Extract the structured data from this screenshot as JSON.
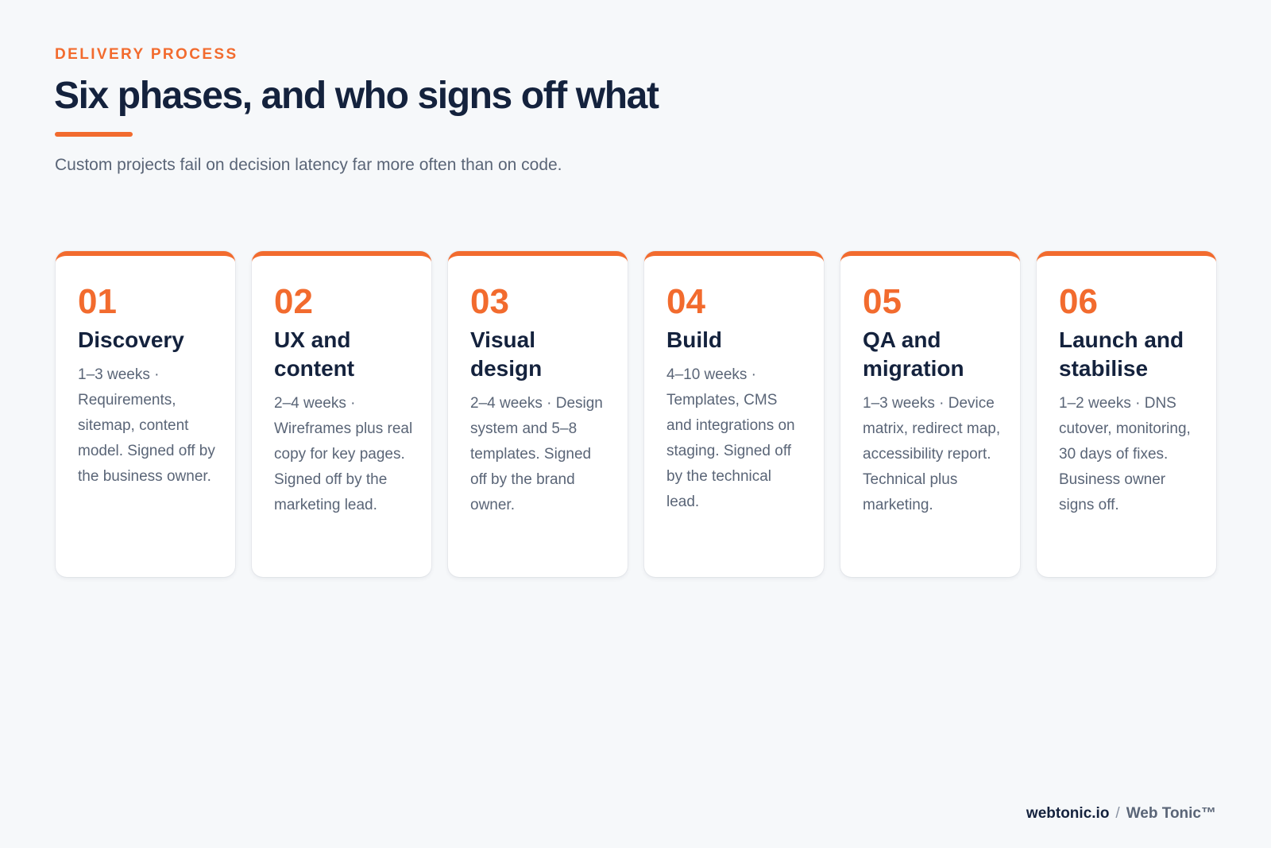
{
  "header": {
    "eyebrow": "DELIVERY PROCESS",
    "title": "Six phases, and who signs off what",
    "subtitle": "Custom projects fail on decision latency far more often than on code."
  },
  "phases": [
    {
      "number": "01",
      "title": "Discovery",
      "description": "1–3 weeks · Requirements, sitemap, content model. Signed off by the business owner."
    },
    {
      "number": "02",
      "title": "UX and content",
      "description": "2–4 weeks · Wireframes plus real copy for key pages. Signed off by the marketing lead."
    },
    {
      "number": "03",
      "title": "Visual design",
      "description": "2–4 weeks · Design system and 5–8 templates. Signed off by the brand owner."
    },
    {
      "number": "04",
      "title": "Build",
      "description": "4–10 weeks · Templates, CMS and integrations on staging. Signed off by the technical lead."
    },
    {
      "number": "05",
      "title": "QA and migration",
      "description": "1–3 weeks · Device matrix, redirect map, accessibility report. Technical plus marketing."
    },
    {
      "number": "06",
      "title": "Launch and stabilise",
      "description": "1–2 weeks · DNS cutover, monitoring, 30 days of fixes. Business owner signs off."
    }
  ],
  "footer": {
    "site": "webtonic.io",
    "separator": "/",
    "brand": "Web Tonic™"
  },
  "colors": {
    "accent": "#f26b2e",
    "heading": "#14223d",
    "body_text": "#5a6577",
    "background": "#f6f8fa",
    "card": "#ffffff"
  }
}
